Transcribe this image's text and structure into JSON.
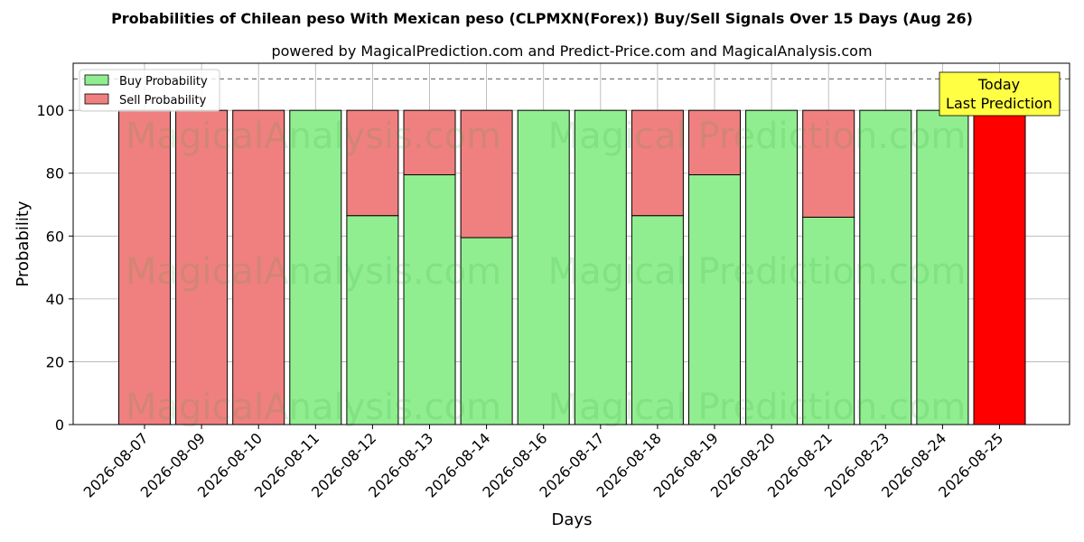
{
  "chart_data": {
    "type": "bar",
    "title": "Probabilities of Chilean peso With Mexican peso (CLPMXN(Forex)) Buy/Sell Signals Over 15 Days (Aug 26)",
    "subtitle": "powered by MagicalPrediction.com and Predict-Price.com and MagicalAnalysis.com",
    "xlabel": "Days",
    "ylabel": "Probability",
    "ylim": [
      0,
      115
    ],
    "yticks": [
      0,
      20,
      40,
      60,
      80,
      100
    ],
    "reference_line": 110,
    "grid": true,
    "legend_position": "top-left",
    "categories": [
      "2026-08-07",
      "2026-08-09",
      "2026-08-10",
      "2026-08-11",
      "2026-08-12",
      "2026-08-13",
      "2026-08-14",
      "2026-08-16",
      "2026-08-17",
      "2026-08-18",
      "2026-08-19",
      "2026-08-20",
      "2026-08-21",
      "2026-08-23",
      "2026-08-24",
      "2026-08-25"
    ],
    "series": [
      {
        "name": "Buy Probability",
        "color": "#90ee90",
        "values": [
          0,
          0,
          0,
          100,
          66.5,
          79.5,
          59.5,
          100,
          100,
          66.5,
          79.5,
          100,
          66,
          100,
          100,
          0
        ]
      },
      {
        "name": "Sell Probability",
        "color": "#f08080",
        "values": [
          100,
          100,
          100,
          0,
          33.5,
          20.5,
          40.5,
          0,
          0,
          33.5,
          20.5,
          0,
          34,
          0,
          0,
          100
        ]
      }
    ],
    "highlight": {
      "index": 15,
      "color": "#ff0000"
    },
    "annotation": {
      "line1": "Today",
      "line2": "Last Prediction",
      "color": "#ffff44"
    }
  },
  "watermarks": [
    "MagicalAnalysis.com",
    "Magical Prediction.com",
    "MagicalAnalysis.com",
    "Magical Prediction.com",
    "MagicalAnalysis.com",
    "Magical Prediction.com"
  ]
}
